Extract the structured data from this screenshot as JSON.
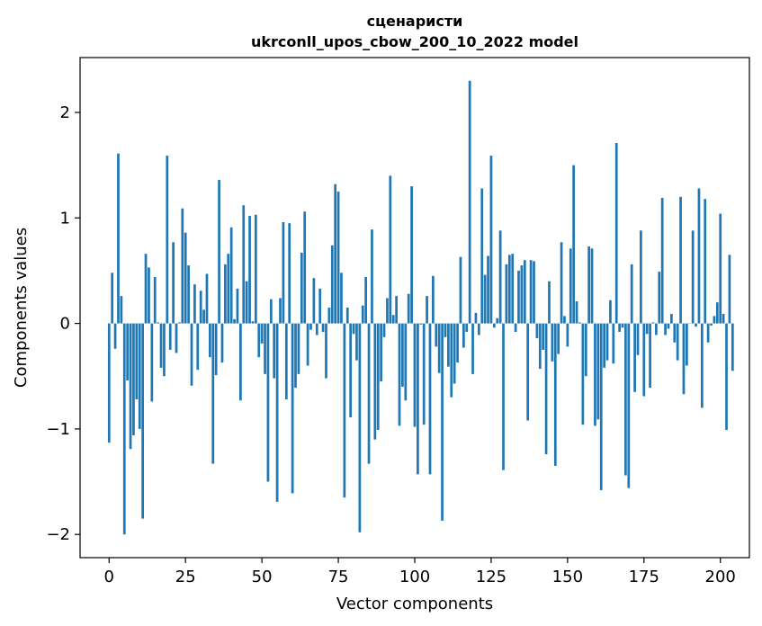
{
  "chart_data": {
    "type": "bar",
    "title_lines": [
      "сценаристи",
      "ukrconll_upos_cbow_200_10_2022 model"
    ],
    "xlabel": "Vector components",
    "ylabel": "Components values",
    "xlim": [
      -9.5,
      209.5
    ],
    "ylim": [
      -2.22,
      2.52
    ],
    "xticks": [
      0,
      25,
      50,
      75,
      100,
      125,
      150,
      175,
      200
    ],
    "yticks": [
      -2,
      -1,
      0,
      1,
      2
    ],
    "ytick_labels": [
      "−2",
      "−1",
      "0",
      "1",
      "2"
    ],
    "bar_color": "#1f77b4",
    "values": [
      -1.13,
      0.48,
      -0.24,
      1.61,
      0.26,
      -2.0,
      -0.54,
      -1.19,
      -1.06,
      -0.72,
      -1.0,
      -1.85,
      0.66,
      0.53,
      -0.74,
      0.44,
      0.01,
      -0.42,
      -0.5,
      1.59,
      -0.25,
      0.77,
      -0.28,
      0.01,
      1.09,
      0.86,
      0.55,
      -0.59,
      0.37,
      -0.44,
      0.31,
      0.13,
      0.47,
      -0.32,
      -1.33,
      -0.49,
      1.36,
      -0.37,
      0.56,
      0.66,
      0.91,
      0.04,
      0.33,
      -0.73,
      1.12,
      0.4,
      1.02,
      0.02,
      1.03,
      -0.32,
      -0.19,
      -0.48,
      -1.5,
      0.23,
      -0.52,
      -1.69,
      0.24,
      0.96,
      -0.72,
      0.95,
      -1.61,
      -0.61,
      -0.48,
      0.67,
      1.06,
      -0.4,
      -0.06,
      0.43,
      -0.11,
      0.33,
      -0.08,
      -0.52,
      0.15,
      0.74,
      1.32,
      1.25,
      0.48,
      -1.65,
      0.15,
      -0.89,
      -0.1,
      -0.35,
      -1.98,
      0.17,
      0.44,
      -1.33,
      0.89,
      -1.1,
      -1.01,
      -0.55,
      -0.13,
      0.24,
      1.4,
      0.08,
      0.26,
      -0.97,
      -0.6,
      -0.73,
      0.28,
      1.3,
      -0.98,
      -1.43,
      -0.01,
      -0.96,
      0.26,
      -1.43,
      0.45,
      -0.22,
      -0.47,
      -1.87,
      -0.13,
      -0.41,
      -0.7,
      -0.57,
      -0.37,
      0.63,
      -0.23,
      -0.08,
      2.3,
      -0.48,
      0.1,
      -0.11,
      1.28,
      0.46,
      0.64,
      1.59,
      -0.04,
      0.05,
      0.88,
      -1.39,
      0.56,
      0.65,
      0.66,
      -0.08,
      0.5,
      0.55,
      0.6,
      -0.92,
      0.6,
      0.59,
      -0.14,
      -0.43,
      -0.25,
      -1.24,
      0.4,
      -0.36,
      -1.35,
      -0.29,
      0.77,
      0.07,
      -0.22,
      0.71,
      1.5,
      0.21,
      0.01,
      -0.96,
      -0.5,
      0.73,
      0.71,
      -0.97,
      -0.91,
      -1.58,
      -0.42,
      -0.35,
      0.22,
      -0.38,
      1.71,
      -0.08,
      -0.04,
      -1.44,
      -1.56,
      0.56,
      -0.65,
      -0.3,
      0.88,
      -0.69,
      -0.1,
      -0.61,
      0.01,
      -0.11,
      0.49,
      1.19,
      -0.11,
      -0.05,
      0.09,
      -0.18,
      -0.35,
      1.2,
      -0.67,
      -0.4,
      0.0,
      0.88,
      -0.03,
      1.28,
      -0.8,
      1.18,
      -0.18,
      -0.02,
      0.07,
      0.2,
      1.04,
      0.09,
      -1.01,
      0.65,
      -0.45
    ]
  }
}
